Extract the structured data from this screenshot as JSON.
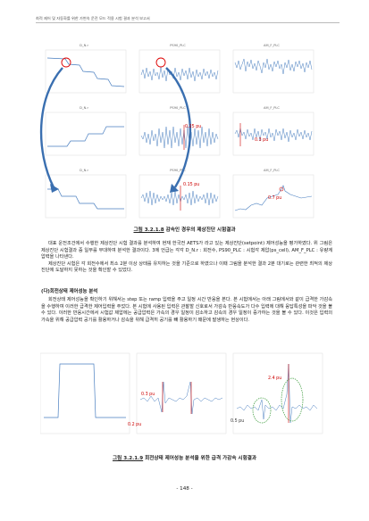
{
  "header": "최적 제어 및 자동화를 위한 가변속 운전 모드 적용 시험 결과 분석 보고서",
  "figure1": {
    "panels": [
      {
        "title": "D_N.r"
      },
      {
        "title": "PS90_PLC"
      },
      {
        "title": "AM_F_PLC"
      },
      {
        "title": "D_N.r"
      },
      {
        "title": "PS90_PLC"
      },
      {
        "title": "AM_F_PLC"
      },
      {
        "title": "D_N.r"
      },
      {
        "title": "PS90_PLC"
      },
      {
        "title": "AM_F_PLC"
      }
    ],
    "annotations": [
      "0.25 pu",
      "0.3 pu",
      "0.15 pu",
      "0.7 pu"
    ],
    "caption_num": "그림 3.2.1.8",
    "caption_text": "감속인 경우의 제상진단 시험결과"
  },
  "paragraph1": [
    "대표 운전조건에서 수행한 제상진단 시험 결과를 분석하여 현재 한국전 AETS가 라고 있는 제상진단(setpoint) 제어성능을 평가하였다. 위 그림은 제상진단 시험결과 중 일부를 부대하여 분석한 결과이다. 3에 언급는 각각 D_N.r : 회전수, PS90_PLC : 시험각 제압(ps_cell), AM_F_PLC : 유량계 압력을 나타낸다.",
    "제상진단 시험은 각 회전수에서 최소 2분 이상 상태를 유지하는 것을 기준으로 하였으나 이때 그림을 분석한 결과 2분 대기로는 관련한 최적의 제상진단에 도달하지 못하는 것을 확인할 수 있었다."
  ],
  "heading2": "(다)회전상태 제어성능 분석",
  "paragraph2": [
    "회전상태 제어성능을 확인하기 위해서는 step 또는 ramp 입력을 주고 일정 시간 반응을 본다. 본 시험에서는 아래 그림에서와 같이 급격한 가감속을 수행하여 이러한 급격한 제어입력을 주었다. 본 시험에 사용된 입력은 관찰할 신호로서 가감속 반응속도가 다수 입력에 대해 응답특성을 파악 것을 볼 수 있다. 이러한 반응시간에서 시험값 제압에는 공급압력은 가속의 경우 일정이 감소하고 감속의 경우 일정이 증가하는 것을 볼 수 있다. 이것은 입력의 가속을 위해 공급압력 공기를 활용하거나 감속을 위해 급격히 공기를 빼 활용하기 때문에 발생하는 현상이다."
  ],
  "figure2": {
    "annotations": [
      "0.3 pu",
      "0.2 pu",
      "2.4 pu",
      "0.5 pu"
    ],
    "caption_num": "그림 3.2.1.9",
    "caption_text": "회전상태 제어성능 분석을 위한 급격 가감속 시험결과"
  },
  "page_number": "- 148 -"
}
